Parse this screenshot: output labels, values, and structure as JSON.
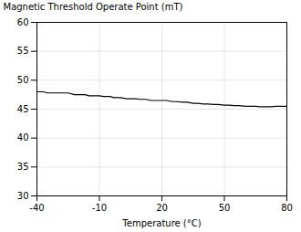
{
  "chart_data": {
    "type": "line",
    "xlabel": "Temperature (°C)",
    "ylabel": "Magnetic Threshold Operate Point (mT)",
    "x": [
      -40,
      -37,
      -35,
      -32,
      -30,
      -27,
      -25,
      -22,
      -20,
      -17,
      -15,
      -13,
      -10,
      -8,
      -5,
      -3,
      0,
      3,
      5,
      7,
      10,
      12,
      15,
      17,
      20,
      22,
      25,
      27,
      30,
      32,
      35,
      37,
      40,
      42,
      45,
      47,
      50,
      52,
      55,
      57,
      60,
      62,
      65,
      67,
      70,
      72,
      75,
      77,
      80
    ],
    "values": [
      48.0,
      48.0,
      47.8,
      47.8,
      47.8,
      47.8,
      47.8,
      47.5,
      47.5,
      47.5,
      47.3,
      47.3,
      47.3,
      47.2,
      47.2,
      47.0,
      47.0,
      46.8,
      46.8,
      46.8,
      46.7,
      46.7,
      46.5,
      46.5,
      46.5,
      46.5,
      46.3,
      46.3,
      46.2,
      46.2,
      46.0,
      46.0,
      45.9,
      45.9,
      45.8,
      45.8,
      45.7,
      45.7,
      45.6,
      45.6,
      45.5,
      45.5,
      45.5,
      45.4,
      45.4,
      45.4,
      45.5,
      45.5,
      45.5
    ],
    "color": "#000000",
    "xlim": [
      -40,
      80
    ],
    "ylim": [
      30,
      60
    ],
    "xticks": [
      -40,
      -10,
      20,
      50,
      80
    ],
    "yticks": [
      30,
      35,
      40,
      45,
      50,
      55,
      60
    ],
    "grid": true
  }
}
